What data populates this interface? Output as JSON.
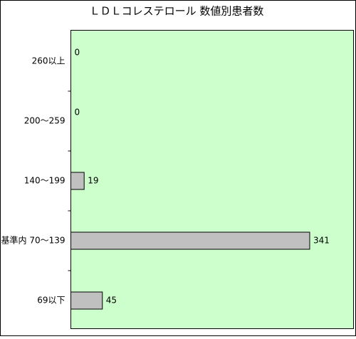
{
  "chart_data": {
    "type": "bar",
    "orientation": "horizontal",
    "title": "ＬＤＬコレステロール 数値別患者数",
    "categories": [
      "260以上",
      "200～259",
      "140～199",
      "基準内 70～139",
      "69以下"
    ],
    "values": [
      0,
      0,
      19,
      341,
      45
    ],
    "color": "#c0c0c0",
    "background": "#ccffcc"
  }
}
